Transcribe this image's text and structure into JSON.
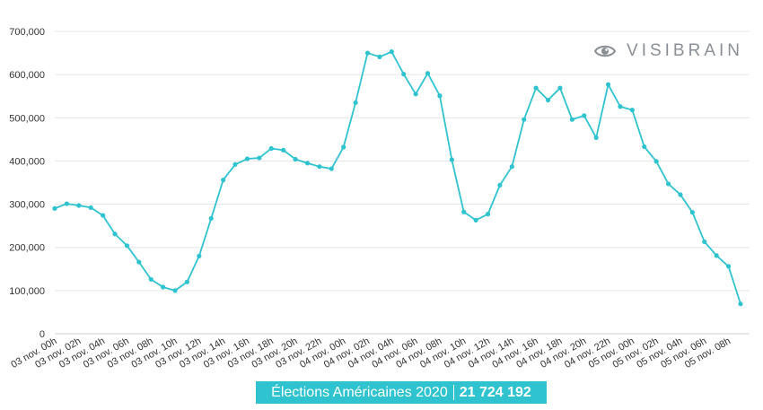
{
  "brand": {
    "name": "VISIBRAIN",
    "icon": "eye-icon",
    "color": "#8a8f95"
  },
  "banner": {
    "label": "Élections Américaines 2020",
    "total": "21 724 192",
    "color": "#2fc3d0"
  },
  "chart_data": {
    "type": "line",
    "title": "",
    "xlabel": "",
    "ylabel": "",
    "ylim": [
      0,
      700000
    ],
    "yticks": [
      "0",
      "100,000",
      "200,000",
      "300,000",
      "400,000",
      "500,000",
      "600,000",
      "700,000"
    ],
    "grid": true,
    "line_color": "#2fc3d0",
    "x": [
      "03 nov. 00h",
      "03 nov. 01h",
      "03 nov. 02h",
      "03 nov. 03h",
      "03 nov. 04h",
      "03 nov. 05h",
      "03 nov. 06h",
      "03 nov. 07h",
      "03 nov. 08h",
      "03 nov. 09h",
      "03 nov. 10h",
      "03 nov. 11h",
      "03 nov. 12h",
      "03 nov. 13h",
      "03 nov. 14h",
      "03 nov. 15h",
      "03 nov. 16h",
      "03 nov. 17h",
      "03 nov. 18h",
      "03 nov. 19h",
      "03 nov. 20h",
      "03 nov. 21h",
      "03 nov. 22h",
      "03 nov. 23h",
      "04 nov. 00h",
      "04 nov. 01h",
      "04 nov. 02h",
      "04 nov. 03h",
      "04 nov. 04h",
      "04 nov. 05h",
      "04 nov. 06h",
      "04 nov. 07h",
      "04 nov. 08h",
      "04 nov. 09h",
      "04 nov. 10h",
      "04 nov. 11h",
      "04 nov. 12h",
      "04 nov. 13h",
      "04 nov. 14h",
      "04 nov. 15h",
      "04 nov. 16h",
      "04 nov. 17h",
      "04 nov. 18h",
      "04 nov. 19h",
      "04 nov. 20h",
      "04 nov. 21h",
      "04 nov. 22h",
      "04 nov. 23h",
      "05 nov. 00h",
      "05 nov. 01h",
      "05 nov. 02h",
      "05 nov. 03h",
      "05 nov. 04h",
      "05 nov. 05h",
      "05 nov. 06h",
      "05 nov. 07h",
      "05 nov. 08h",
      "05 nov. 09h"
    ],
    "xtick_labels": [
      "03 nov. 00h",
      "03 nov. 02h",
      "03 nov. 04h",
      "03 nov. 06h",
      "03 nov. 08h",
      "03 nov. 10h",
      "03 nov. 12h",
      "03 nov. 14h",
      "03 nov. 16h",
      "03 nov. 18h",
      "03 nov. 20h",
      "03 nov. 22h",
      "04 nov. 00h",
      "04 nov. 02h",
      "04 nov. 04h",
      "04 nov. 06h",
      "04 nov. 08h",
      "04 nov. 10h",
      "04 nov. 12h",
      "04 nov. 14h",
      "04 nov. 16h",
      "04 nov. 18h",
      "04 nov. 20h",
      "04 nov. 22h",
      "05 nov. 00h",
      "05 nov. 02h",
      "05 nov. 04h",
      "05 nov. 06h",
      "05 nov. 08h"
    ],
    "values": [
      290000,
      301000,
      297000,
      292000,
      274000,
      231000,
      204000,
      166000,
      126000,
      108000,
      100000,
      120000,
      180000,
      267000,
      356000,
      392000,
      405000,
      407000,
      429000,
      425000,
      404000,
      395000,
      387000,
      382000,
      432000,
      535000,
      650000,
      641000,
      653000,
      601000,
      555000,
      603000,
      551000,
      403000,
      282000,
      263000,
      277000,
      344000,
      387000,
      496000,
      569000,
      541000,
      569000,
      496000,
      505000,
      454000,
      577000,
      526000,
      518000,
      433000,
      399000,
      347000,
      322000,
      281000,
      213000,
      181000,
      156000,
      69000
    ]
  }
}
